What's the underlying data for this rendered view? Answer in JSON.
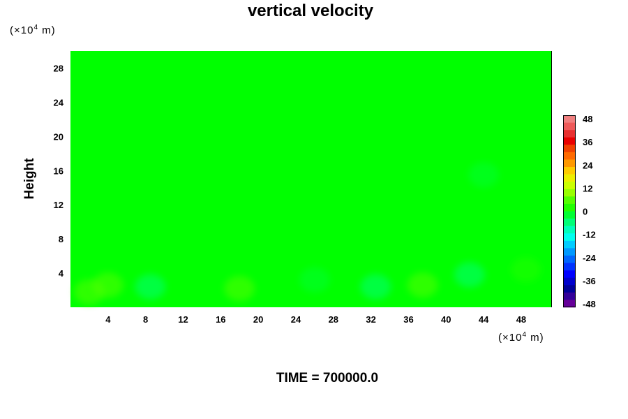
{
  "chart_data": {
    "type": "heatmap",
    "title": "vertical velocity",
    "ylabel": "Height",
    "x_unit": {
      "prefix": "(×10",
      "exponent": "4",
      "suffix": " m)"
    },
    "y_unit": {
      "prefix": "(×10",
      "exponent": "4",
      "suffix": " m)"
    },
    "x_ticks": [
      "4",
      "8",
      "12",
      "16",
      "20",
      "24",
      "28",
      "32",
      "36",
      "40",
      "44",
      "48"
    ],
    "y_ticks": [
      "4",
      "8",
      "12",
      "16",
      "20",
      "24",
      "28"
    ],
    "xlim": [
      0,
      51.2
    ],
    "ylim": [
      0,
      30
    ],
    "field_description_value": 0,
    "colorbar": {
      "min": -48,
      "max": 48,
      "tick_labels": [
        "48",
        "36",
        "24",
        "12",
        "0",
        "-12",
        "-24",
        "-36",
        "-48"
      ],
      "tick_values": [
        48,
        36,
        24,
        12,
        0,
        -12,
        -24,
        -36,
        -48
      ],
      "colors_top_to_bottom": [
        "#f08080",
        "#ee5a5a",
        "#e83030",
        "#e80000",
        "#f04000",
        "#ff6a00",
        "#ff9900",
        "#ffcc00",
        "#eeee00",
        "#ccff00",
        "#99ff00",
        "#55ff00",
        "#22ff00",
        "#00ff33",
        "#00ff77",
        "#00ffbb",
        "#00ffee",
        "#00ccff",
        "#0099ff",
        "#0066ff",
        "#0033ff",
        "#0000ff",
        "#0000cc",
        "#000099",
        "#330099",
        "#660099"
      ]
    },
    "features": [
      {
        "x": 2,
        "y": 1.8,
        "value": 6
      },
      {
        "x": 4,
        "y": 2.6,
        "value": 4
      },
      {
        "x": 8.5,
        "y": 2.4,
        "value": -5
      },
      {
        "x": 18,
        "y": 2.2,
        "value": 4
      },
      {
        "x": 26,
        "y": 3.2,
        "value": -3
      },
      {
        "x": 32.5,
        "y": 2.4,
        "value": -6
      },
      {
        "x": 37.5,
        "y": 2.6,
        "value": 5
      },
      {
        "x": 42.5,
        "y": 3.8,
        "value": -4
      },
      {
        "x": 48.5,
        "y": 4.4,
        "value": 3
      },
      {
        "x": 44,
        "y": 15.5,
        "value": -3
      }
    ]
  },
  "time_label": "TIME = 700000.0"
}
